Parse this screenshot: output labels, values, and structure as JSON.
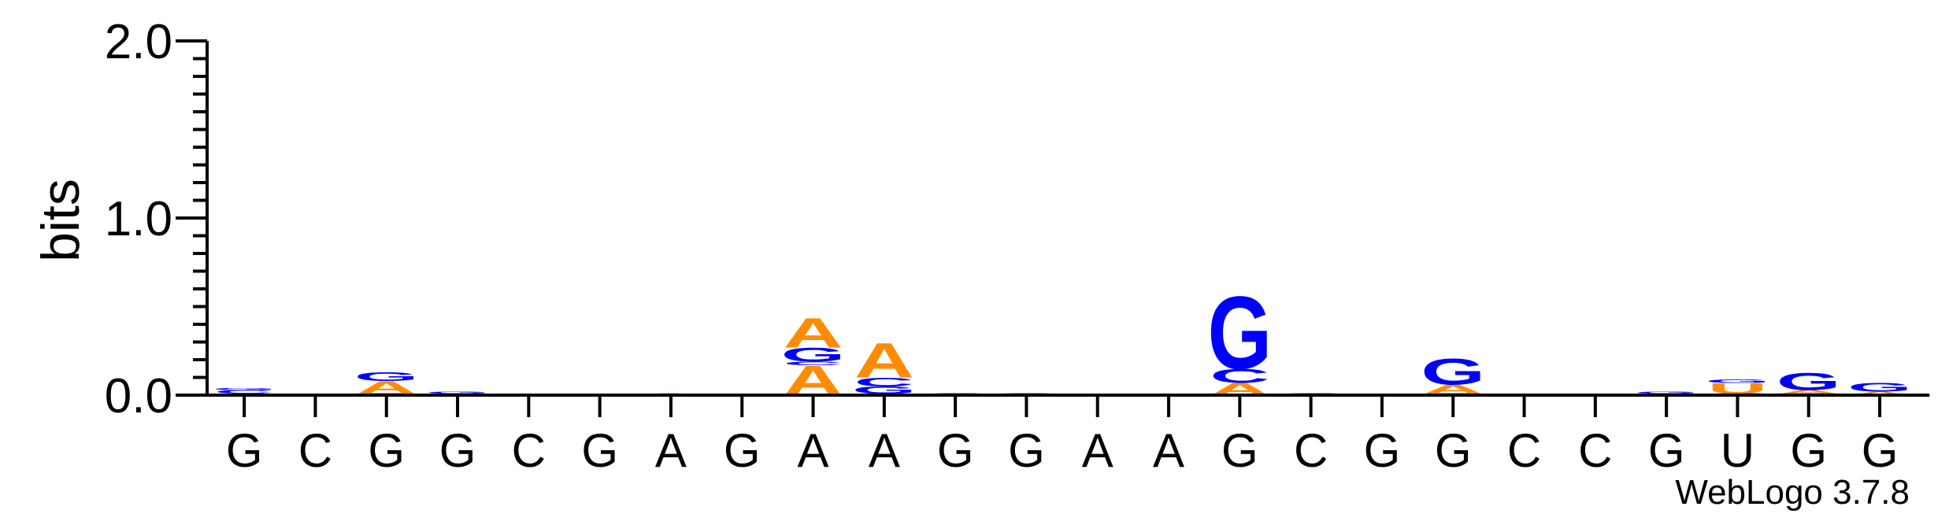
{
  "chart_data": {
    "type": "sequence-logo",
    "ylabel": "bits",
    "ylim": [
      0,
      2.0
    ],
    "yticks": [
      "0.0",
      "1.0",
      "2.0"
    ],
    "positions": [
      "G",
      "C",
      "G",
      "G",
      "C",
      "G",
      "A",
      "G",
      "A",
      "A",
      "G",
      "G",
      "A",
      "A",
      "G",
      "C",
      "G",
      "G",
      "C",
      "C",
      "G",
      "U",
      "G",
      "G"
    ],
    "colors": {
      "A": "#ff8c00",
      "C": "#0000ff",
      "G": "#0000ff",
      "U": "#ff8c00"
    },
    "stacks": [
      [
        [
          "A",
          0.01
        ],
        [
          "C",
          0.02
        ],
        [
          "G",
          0.01
        ]
      ],
      [],
      [
        [
          "C",
          0.01
        ],
        [
          "A",
          0.07
        ],
        [
          "G",
          0.05
        ]
      ],
      [
        [
          "C",
          0.01
        ],
        [
          "G",
          0.01
        ]
      ],
      [],
      [],
      [
        [
          "A",
          0.01
        ]
      ],
      [],
      [
        [
          "A",
          0.17
        ],
        [
          "C",
          0.02
        ],
        [
          "G",
          0.08
        ],
        [
          "A",
          0.17
        ]
      ],
      [
        [
          "C",
          0.01
        ],
        [
          "G",
          0.04
        ],
        [
          "C",
          0.05
        ],
        [
          "A",
          0.2
        ]
      ],
      [
        [
          "C",
          0.01
        ]
      ],
      [
        [
          "G",
          0.01
        ]
      ],
      [
        [
          "A",
          0.005
        ]
      ],
      [],
      [
        [
          "A",
          0.07
        ],
        [
          "C",
          0.08
        ],
        [
          "G",
          0.42
        ]
      ],
      [
        [
          "C",
          0.01
        ]
      ],
      [],
      [
        [
          "C",
          0.01
        ],
        [
          "A",
          0.05
        ],
        [
          "G",
          0.15
        ]
      ],
      [],
      [],
      [
        [
          "C",
          0.01
        ],
        [
          "G",
          0.01
        ]
      ],
      [
        [
          "C",
          0.01
        ],
        [
          "U",
          0.06
        ],
        [
          "G",
          0.02
        ]
      ],
      [
        [
          "C",
          0.01
        ],
        [
          "A",
          0.02
        ],
        [
          "G",
          0.1
        ]
      ],
      [
        [
          "A",
          0.02
        ],
        [
          "G",
          0.05
        ]
      ]
    ]
  },
  "credit": "WebLogo 3.7.8"
}
